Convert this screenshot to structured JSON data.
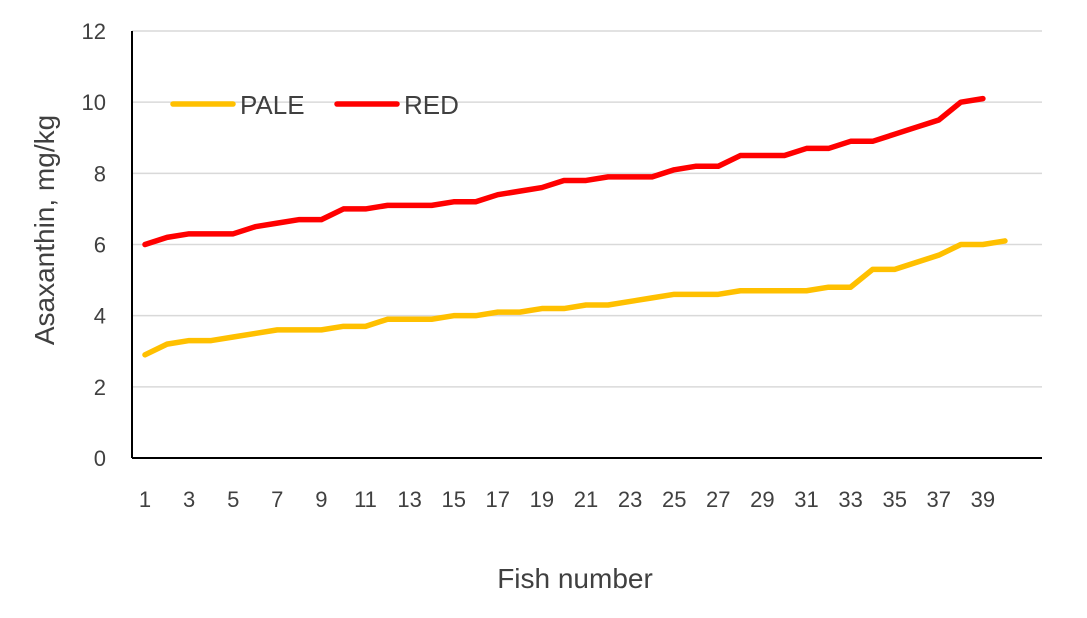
{
  "chart_data": {
    "type": "line",
    "title": "",
    "xlabel": "Fish number",
    "ylabel": "Asaxanthin, mg/kg",
    "ylim": [
      0,
      12
    ],
    "y_ticks": [
      "0",
      "2",
      "4",
      "6",
      "8",
      "10",
      "12"
    ],
    "x_ticks": [
      "1",
      "3",
      "5",
      "7",
      "9",
      "11",
      "13",
      "15",
      "17",
      "19",
      "21",
      "23",
      "25",
      "27",
      "29",
      "31",
      "33",
      "35",
      "37",
      "39"
    ],
    "x_count": 40,
    "grid": "horizontal",
    "legend_position": "top-left",
    "series": [
      {
        "name": "PALE",
        "color": "#FFC000",
        "x": [
          1,
          2,
          3,
          4,
          5,
          6,
          7,
          8,
          9,
          10,
          11,
          12,
          13,
          14,
          15,
          16,
          17,
          18,
          19,
          20,
          21,
          22,
          23,
          24,
          25,
          26,
          27,
          28,
          29,
          30,
          31,
          32,
          33,
          34,
          35,
          36,
          37,
          38,
          39,
          40
        ],
        "values": [
          2.9,
          3.2,
          3.3,
          3.3,
          3.4,
          3.5,
          3.6,
          3.6,
          3.6,
          3.7,
          3.7,
          3.9,
          3.9,
          3.9,
          4.0,
          4.0,
          4.1,
          4.1,
          4.2,
          4.2,
          4.3,
          4.3,
          4.4,
          4.5,
          4.6,
          4.6,
          4.6,
          4.7,
          4.7,
          4.7,
          4.7,
          4.8,
          4.8,
          5.3,
          5.3,
          5.5,
          5.7,
          6.0,
          6.0,
          6.1
        ]
      },
      {
        "name": "RED",
        "color": "#FF0000",
        "x": [
          1,
          2,
          3,
          4,
          5,
          6,
          7,
          8,
          9,
          10,
          11,
          12,
          13,
          14,
          15,
          16,
          17,
          18,
          19,
          20,
          21,
          22,
          23,
          24,
          25,
          26,
          27,
          28,
          29,
          30,
          31,
          32,
          33,
          34,
          35,
          36,
          37,
          38,
          39
        ],
        "values": [
          6.0,
          6.2,
          6.3,
          6.3,
          6.3,
          6.5,
          6.6,
          6.7,
          6.7,
          7.0,
          7.0,
          7.1,
          7.1,
          7.1,
          7.2,
          7.2,
          7.4,
          7.5,
          7.6,
          7.8,
          7.8,
          7.9,
          7.9,
          7.9,
          8.1,
          8.2,
          8.2,
          8.5,
          8.5,
          8.5,
          8.7,
          8.7,
          8.9,
          8.9,
          9.1,
          9.3,
          9.5,
          10.0,
          10.1
        ]
      }
    ]
  }
}
